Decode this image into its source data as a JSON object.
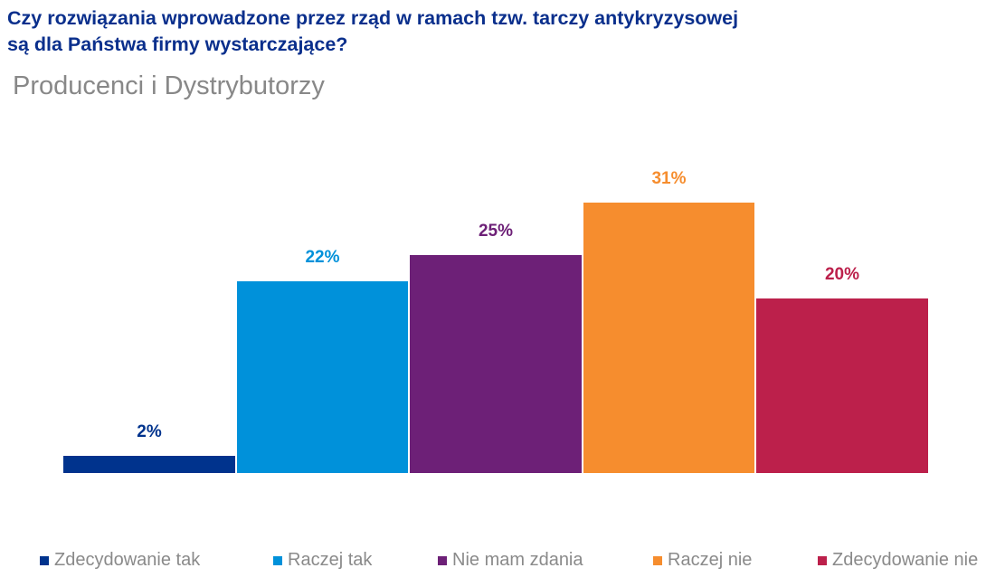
{
  "header": {
    "title_line1": "Czy rozwiązania wprowadzone przez rząd w ramach tzw. tarczy antykryzysowej",
    "title_line2": "są dla Państwa firmy wystarczające?",
    "subtitle": "Producenci i Dystrybutorzy"
  },
  "bars": [
    {
      "label": "2%",
      "color": "#00338d"
    },
    {
      "label": "22%",
      "color": "#0091da"
    },
    {
      "label": "25%",
      "color": "#6d2077"
    },
    {
      "label": "31%",
      "color": "#f68d2e"
    },
    {
      "label": "20%",
      "color": "#bc204b"
    }
  ],
  "legend": [
    {
      "label": "Zdecydowanie tak",
      "color": "#00338d"
    },
    {
      "label": "Raczej tak",
      "color": "#0091da"
    },
    {
      "label": "Nie mam zdania",
      "color": "#6d2077"
    },
    {
      "label": "Raczej nie",
      "color": "#f68d2e"
    },
    {
      "label": "Zdecydowanie nie",
      "color": "#bc204b"
    }
  ],
  "chart_data": {
    "type": "bar",
    "title": "Czy rozwiązania wprowadzone przez rząd w ramach tzw. tarczy antykryzysowej są dla Państwa firmy wystarczające?",
    "subtitle": "Producenci i Dystrybutorzy",
    "categories": [
      "Zdecydowanie tak",
      "Raczej tak",
      "Nie mam zdania",
      "Raczej nie",
      "Zdecydowanie nie"
    ],
    "values": [
      2,
      22,
      25,
      31,
      20
    ],
    "unit": "%",
    "colors": [
      "#00338d",
      "#0091da",
      "#6d2077",
      "#f68d2e",
      "#bc204b"
    ],
    "xlabel": "",
    "ylabel": "",
    "ylim": [
      0,
      35
    ],
    "grid": false,
    "legend_position": "bottom",
    "data_labels": true
  }
}
